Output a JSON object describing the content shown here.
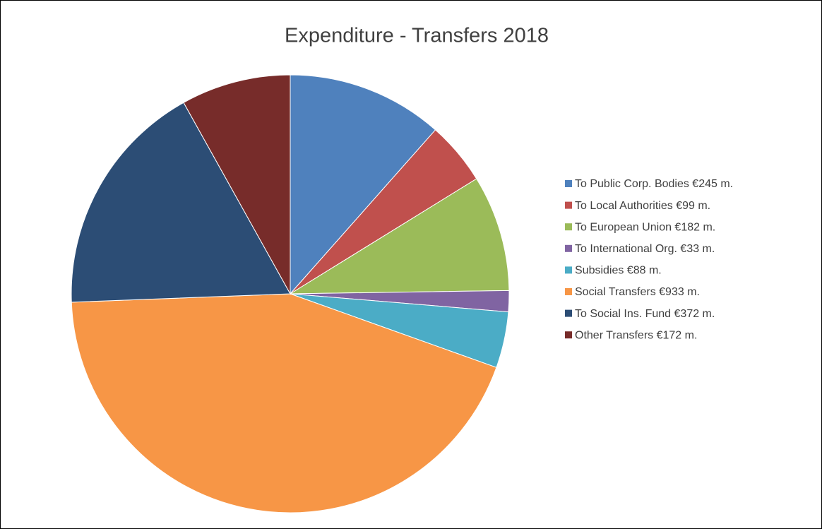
{
  "chart_data": {
    "type": "pie",
    "title": "Expenditure - Transfers 2018",
    "categories": [
      "To Public Corp. Bodies €245 m.",
      "To Local Authorities €99 m.",
      "To European Union €182 m.",
      "To International Org. €33 m.",
      "Subsidies €88 m.",
      "Social Transfers €933 m.",
      "To Social Ins. Fund €372 m.",
      "Other Transfers €172 m."
    ],
    "values": [
      245,
      99,
      182,
      33,
      88,
      933,
      372,
      172
    ],
    "colors": [
      "#4f81bd",
      "#c0504d",
      "#9bbb59",
      "#8064a2",
      "#4bacc6",
      "#f79646",
      "#2c4d75",
      "#772c2a"
    ],
    "legend": "right"
  }
}
